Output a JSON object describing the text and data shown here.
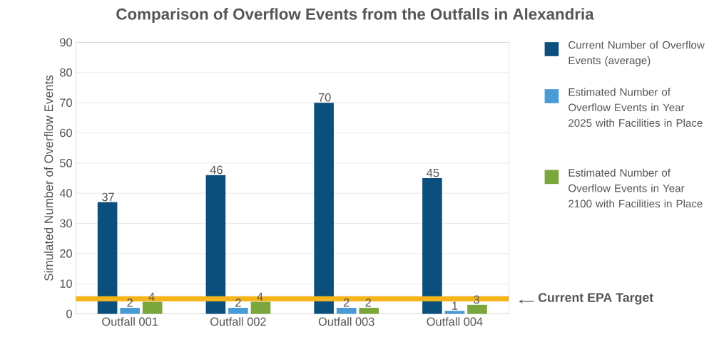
{
  "chart_data": {
    "type": "bar",
    "title": "Comparison of Overflow Events from the Outfalls in Alexandria",
    "ylabel": "Simulated Number of Overflow Events",
    "categories": [
      "Outfall 001",
      "Outfall 002",
      "Outfall 003",
      "Outfall 004"
    ],
    "series": [
      {
        "name": "Current Number of Overflow Events (average)",
        "color": "#0b4f7c",
        "values": [
          37,
          46,
          70,
          45
        ]
      },
      {
        "name": "Estimated Number of Overflow Events in Year 2025 with Facilities in Place",
        "color": "#4a9ad6",
        "values": [
          2,
          2,
          2,
          1
        ]
      },
      {
        "name": "Estimated Number of Overflow Events in Year 2100 with Facilities in Place",
        "color": "#7aa63b",
        "values": [
          4,
          4,
          2,
          3
        ]
      }
    ],
    "ylim": [
      0,
      90
    ],
    "yticks": [
      0,
      10,
      20,
      30,
      40,
      50,
      60,
      70,
      80,
      90
    ],
    "grid": "y",
    "legend": "right",
    "data_labels": true,
    "ref_lines": [
      {
        "axis": "y",
        "value": 5,
        "label": "Current EPA Target",
        "color": "#f5b41a"
      }
    ]
  }
}
